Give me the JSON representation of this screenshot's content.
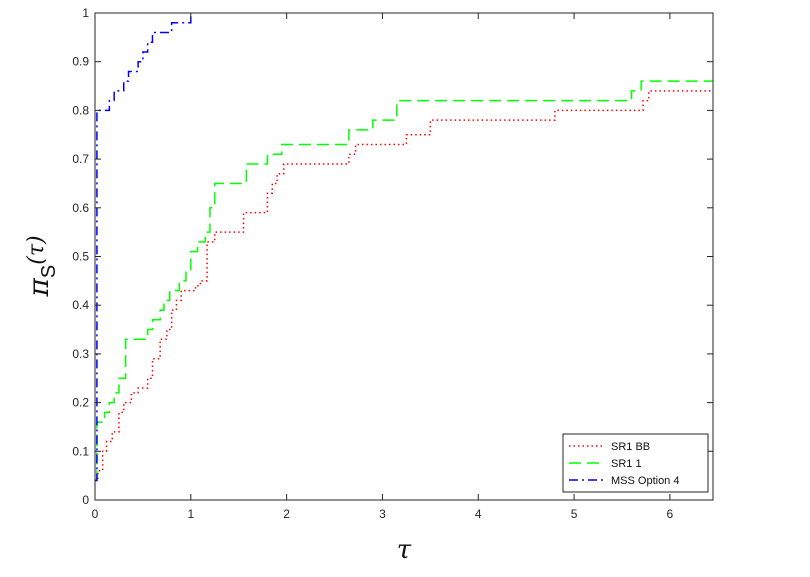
{
  "chart_data": {
    "type": "line",
    "xlabel": "τ",
    "ylabel": "π",
    "ylabel_sub": "S",
    "ylabel_arg": "(τ)",
    "xlim": [
      0,
      6.45
    ],
    "ylim": [
      0,
      1
    ],
    "xticks": [
      0,
      1,
      2,
      3,
      4,
      5,
      6
    ],
    "yticks": [
      0,
      0.1,
      0.2,
      0.3,
      0.4,
      0.5,
      0.6,
      0.7,
      0.8,
      0.9,
      1
    ],
    "grid": false,
    "legend_position": "bottom-right",
    "series": [
      {
        "name": "SR1 BB",
        "color": "#ff0000",
        "dash": "dotted",
        "x": [
          0,
          0.03,
          0.08,
          0.12,
          0.18,
          0.25,
          0.3,
          0.38,
          0.45,
          0.55,
          0.6,
          0.68,
          0.75,
          0.8,
          0.85,
          0.9,
          1.0,
          1.05,
          1.1,
          1.17,
          1.25,
          1.55,
          1.62,
          1.8,
          1.85,
          1.9,
          1.97,
          2.65,
          2.72,
          3.05,
          3.25,
          3.5,
          4.8,
          5.72,
          5.78
        ],
        "y": [
          0.04,
          0.06,
          0.1,
          0.12,
          0.14,
          0.18,
          0.2,
          0.22,
          0.23,
          0.25,
          0.29,
          0.33,
          0.35,
          0.39,
          0.41,
          0.43,
          0.43,
          0.44,
          0.45,
          0.53,
          0.55,
          0.59,
          0.59,
          0.63,
          0.65,
          0.67,
          0.69,
          0.71,
          0.73,
          0.73,
          0.75,
          0.78,
          0.8,
          0.82,
          0.84
        ]
      },
      {
        "name": "SR1 1",
        "color": "#00ff00",
        "dash": "dashed",
        "x": [
          0,
          0.02,
          0.1,
          0.15,
          0.2,
          0.25,
          0.32,
          0.55,
          0.6,
          0.68,
          0.72,
          0.78,
          0.88,
          0.95,
          1.0,
          1.07,
          1.15,
          1.2,
          1.25,
          1.3,
          1.58,
          1.8,
          1.95,
          2.65,
          2.9,
          3.15,
          5.6,
          5.7
        ],
        "y": [
          0.04,
          0.16,
          0.18,
          0.2,
          0.22,
          0.25,
          0.33,
          0.35,
          0.37,
          0.39,
          0.41,
          0.43,
          0.45,
          0.47,
          0.51,
          0.53,
          0.55,
          0.6,
          0.65,
          0.65,
          0.69,
          0.71,
          0.73,
          0.76,
          0.78,
          0.82,
          0.84,
          0.86
        ]
      },
      {
        "name": "MSS Option 4",
        "color": "#0000ff",
        "dash": "dashdot",
        "x": [
          0,
          0.02,
          0.1,
          0.15,
          0.2,
          0.3,
          0.35,
          0.45,
          0.5,
          0.55,
          0.6,
          0.75,
          0.8,
          0.92,
          1.0
        ],
        "y": [
          0.04,
          0.8,
          0.8,
          0.82,
          0.84,
          0.86,
          0.88,
          0.9,
          0.92,
          0.94,
          0.96,
          0.96,
          0.98,
          0.98,
          1.0
        ]
      }
    ]
  }
}
